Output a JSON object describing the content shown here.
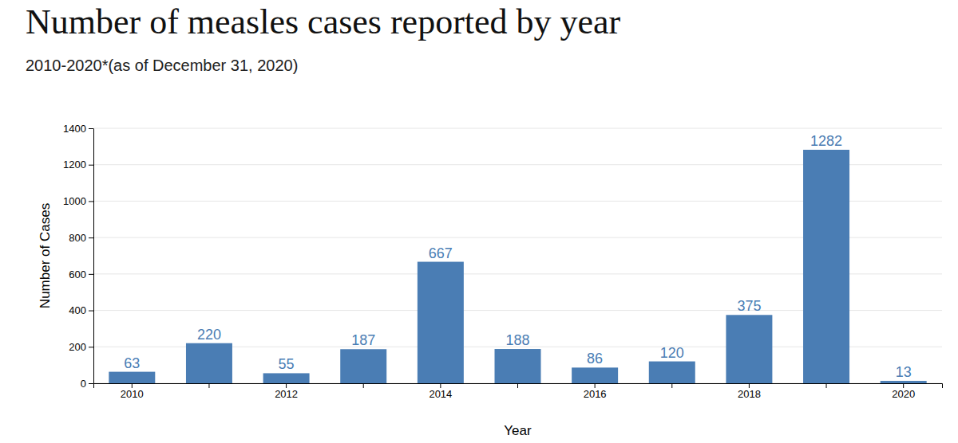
{
  "chart_data": {
    "type": "bar",
    "title": "Number of measles cases reported by year",
    "subtitle": "2010-2020*(as of December 31, 2020)",
    "x_label": "Year",
    "y_label": "Number of Cases",
    "categories": [
      "2010",
      null,
      "2012",
      null,
      "2014",
      null,
      "2016",
      null,
      "2018",
      null,
      "2020"
    ],
    "values": [
      63,
      220,
      55,
      187,
      667,
      188,
      86,
      120,
      375,
      1282,
      13
    ],
    "color": "#4a7db4",
    "ylim": [
      0,
      1400
    ],
    "yticks": [
      0,
      200,
      400,
      600,
      800,
      1000,
      1200,
      1400
    ],
    "grid": true,
    "data_labels": true
  }
}
